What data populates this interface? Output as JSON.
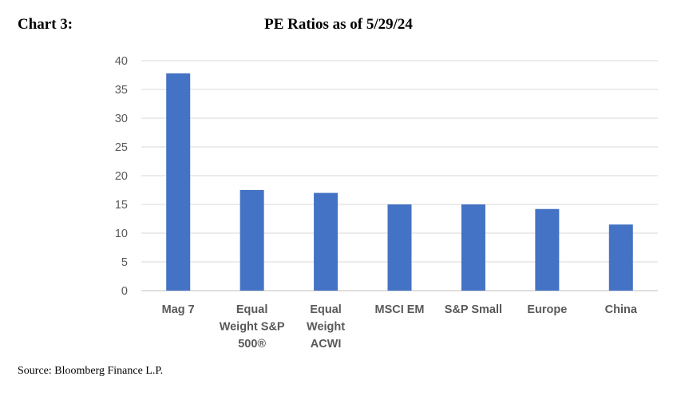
{
  "header": {
    "label": "Chart 3:",
    "title": "PE Ratios as of 5/29/24"
  },
  "footer": {
    "source": "Source: Bloomberg Finance L.P."
  },
  "colors": {
    "bar": "#4472C4",
    "grid": "#d9d9d9",
    "axis_text": "#595959"
  },
  "chart_data": {
    "type": "bar",
    "title": "PE Ratios as of 5/29/24",
    "xlabel": "",
    "ylabel": "",
    "categories": [
      [
        "Mag 7"
      ],
      [
        "Equal",
        "Weight S&P",
        "500®"
      ],
      [
        "Equal",
        "Weight",
        "ACWI"
      ],
      [
        "MSCI EM"
      ],
      [
        "S&P Small"
      ],
      [
        "Europe"
      ],
      [
        "China"
      ]
    ],
    "values": [
      37.8,
      17.5,
      17.0,
      15.0,
      15.0,
      14.2,
      11.5
    ],
    "ylim": [
      0,
      40
    ],
    "yticks": [
      0,
      5,
      10,
      15,
      20,
      25,
      30,
      35,
      40
    ],
    "grid": true,
    "legend": "none"
  }
}
